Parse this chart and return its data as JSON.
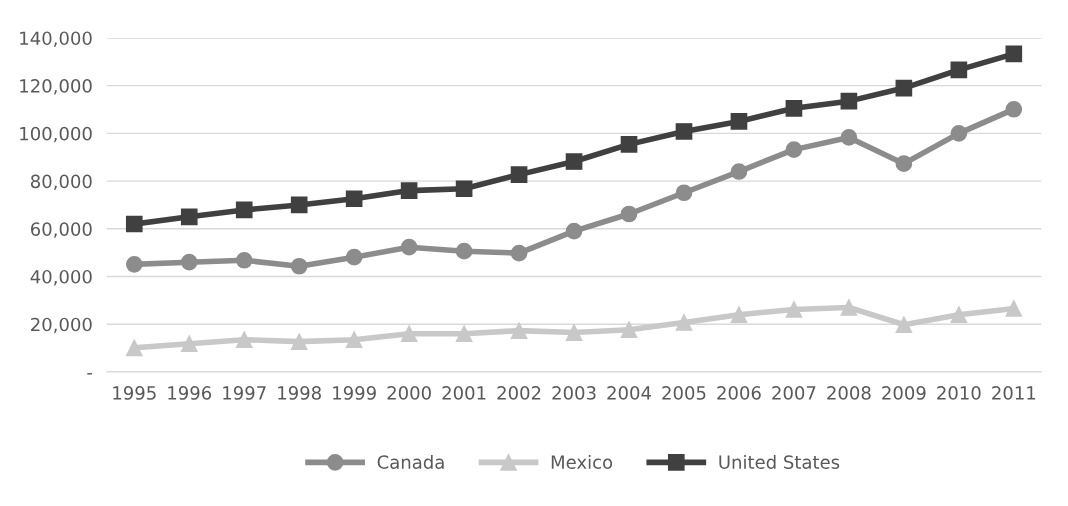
{
  "chart_data": {
    "type": "line",
    "categories": [
      "1995",
      "1996",
      "1997",
      "1998",
      "1999",
      "2000",
      "2001",
      "2002",
      "2003",
      "2004",
      "2005",
      "2006",
      "2007",
      "2008",
      "2009",
      "2010",
      "2011"
    ],
    "series": [
      {
        "name": "Canada",
        "color": "#8c8c8c",
        "marker": "circle",
        "values": [
          45100,
          46000,
          46800,
          44300,
          48100,
          52300,
          50600,
          49800,
          59000,
          66200,
          75100,
          84000,
          93200,
          98300,
          87300,
          100000,
          110100
        ]
      },
      {
        "name": "Mexico",
        "color": "#c8c8c8",
        "marker": "triangle",
        "values": [
          10100,
          11800,
          13500,
          12700,
          13500,
          16000,
          16000,
          17300,
          16500,
          17700,
          20700,
          24000,
          26200,
          27000,
          19800,
          24000,
          26600
        ]
      },
      {
        "name": "United States",
        "color": "#404040",
        "marker": "square",
        "values": [
          62000,
          65000,
          67900,
          70000,
          72600,
          76000,
          76800,
          82700,
          88200,
          95400,
          100800,
          105000,
          110500,
          113500,
          119000,
          126600,
          133300
        ]
      }
    ],
    "ylim": [
      0,
      140000
    ],
    "yticks": [
      {
        "value": 0,
        "label": "-"
      },
      {
        "value": 20000,
        "label": "20,000"
      },
      {
        "value": 40000,
        "label": "40,000"
      },
      {
        "value": 60000,
        "label": "60,000"
      },
      {
        "value": 80000,
        "label": "80,000"
      },
      {
        "value": 100000,
        "label": "100,000"
      },
      {
        "value": 120000,
        "label": "120,000"
      },
      {
        "value": 140000,
        "label": "140,000"
      }
    ],
    "grid": "y",
    "legend": "bottom",
    "line_style": "solid"
  }
}
